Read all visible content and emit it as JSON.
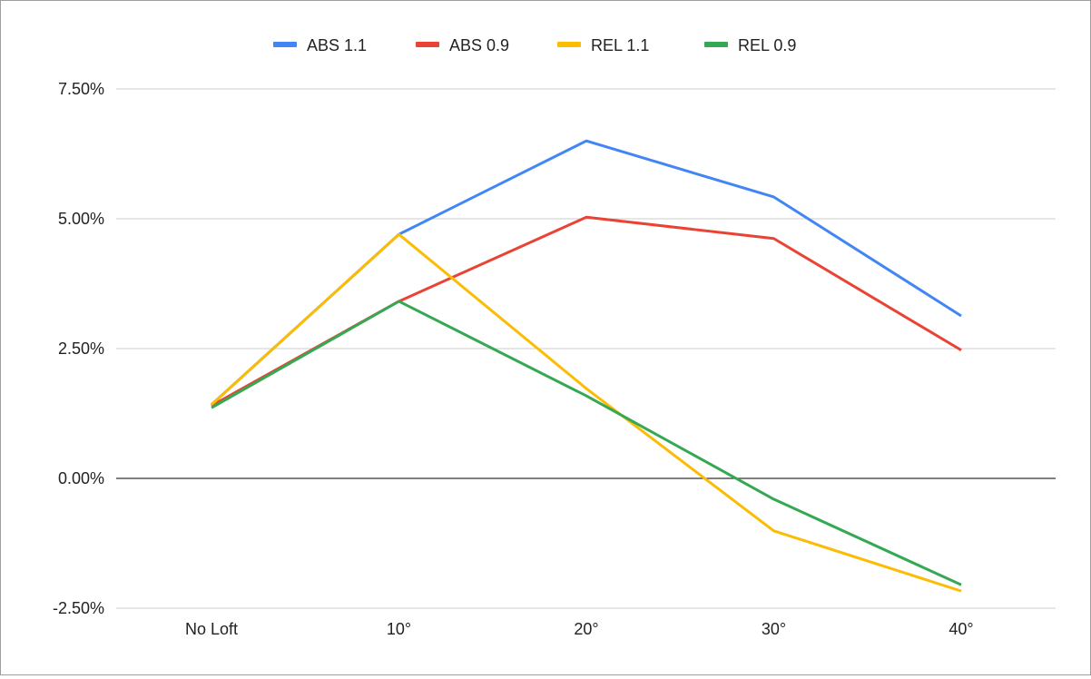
{
  "chart_data": {
    "type": "line",
    "title": "",
    "xlabel": "",
    "ylabel": "",
    "categories": [
      "No Loft",
      "10°",
      "20°",
      "30°",
      "40°"
    ],
    "ylim": [
      -2.5,
      7.5
    ],
    "yticks": [
      -2.5,
      0,
      2.5,
      5,
      7.5
    ],
    "ytick_labels": [
      "-2.50%",
      "0.00%",
      "2.50%",
      "5.00%",
      "7.50%"
    ],
    "grid": true,
    "legend_position": "top",
    "series": [
      {
        "name": "ABS 1.1",
        "color": "#4285f4",
        "values": [
          1.42,
          4.7,
          6.5,
          5.42,
          3.13
        ]
      },
      {
        "name": "ABS 0.9",
        "color": "#ea4335",
        "values": [
          1.4,
          3.41,
          5.03,
          4.62,
          2.47
        ]
      },
      {
        "name": "REL 1.1",
        "color": "#fbbc04",
        "values": [
          1.42,
          4.7,
          1.73,
          -1.01,
          -2.17
        ]
      },
      {
        "name": "REL 0.9",
        "color": "#34a853",
        "values": [
          1.36,
          3.41,
          1.59,
          -0.4,
          -2.05
        ]
      }
    ]
  }
}
